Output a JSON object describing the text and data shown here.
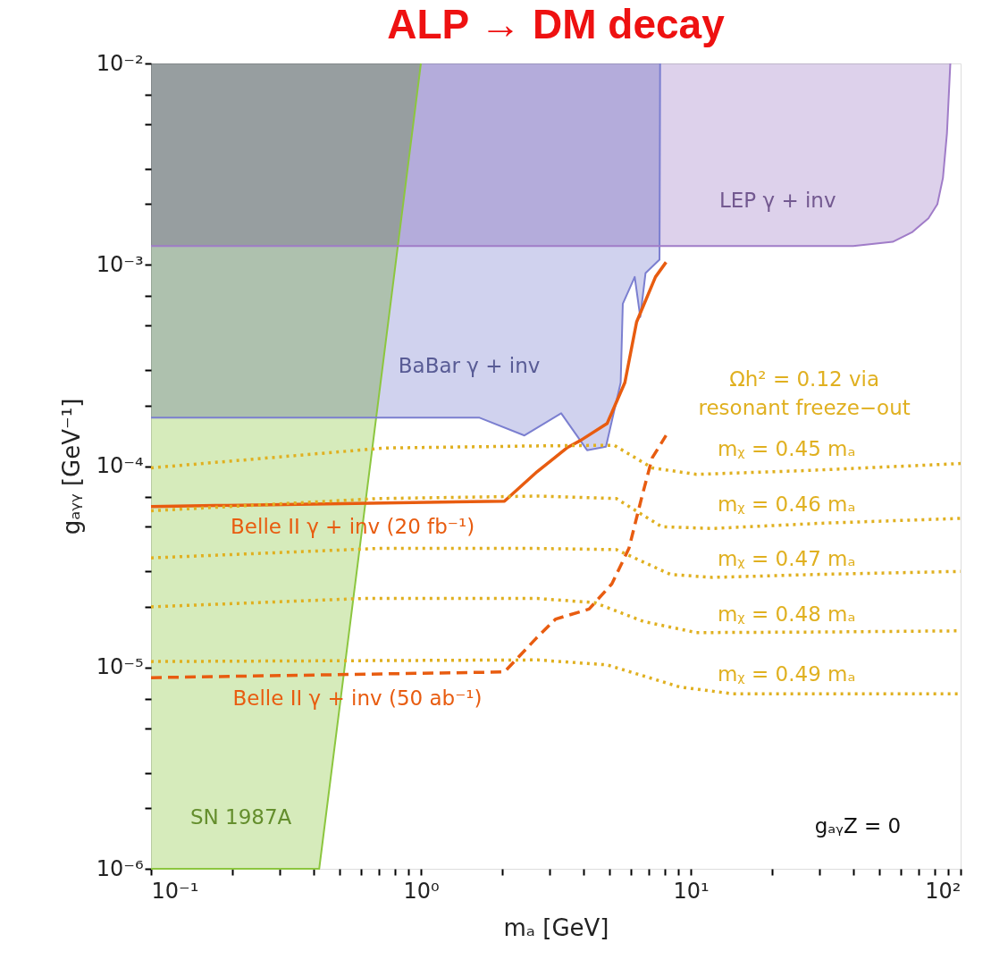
{
  "chart_data": {
    "type": "line",
    "title": "ALP → DM decay",
    "xlabel": "mₐ [GeV]",
    "ylabel": "gₐᵧᵧ [GeV⁻¹]",
    "log": "xy",
    "grid": false,
    "marker": "none",
    "xlim": [
      0.1,
      100
    ],
    "ylim": [
      1e-06,
      0.01
    ],
    "xticks": [
      {
        "value": 0.1,
        "label": "10⁻¹"
      },
      {
        "value": 0.2,
        "label": null
      },
      {
        "value": 0.3,
        "label": null
      },
      {
        "value": 0.4,
        "label": null
      },
      {
        "value": 0.5,
        "label": null
      },
      {
        "value": 0.6,
        "label": null
      },
      {
        "value": 0.7,
        "label": null
      },
      {
        "value": 0.8,
        "label": null
      },
      {
        "value": 0.9,
        "label": null
      },
      {
        "value": 1,
        "label": "10⁰"
      },
      {
        "value": 2,
        "label": null
      },
      {
        "value": 3,
        "label": null
      },
      {
        "value": 4,
        "label": null
      },
      {
        "value": 5,
        "label": null
      },
      {
        "value": 6,
        "label": null
      },
      {
        "value": 7,
        "label": null
      },
      {
        "value": 8,
        "label": null
      },
      {
        "value": 9,
        "label": null
      },
      {
        "value": 10,
        "label": "10¹"
      },
      {
        "value": 20,
        "label": null
      },
      {
        "value": 30,
        "label": null
      },
      {
        "value": 40,
        "label": null
      },
      {
        "value": 50,
        "label": null
      },
      {
        "value": 60,
        "label": null
      },
      {
        "value": 70,
        "label": null
      },
      {
        "value": 80,
        "label": null
      },
      {
        "value": 90,
        "label": null
      },
      {
        "value": 100,
        "label": "10²"
      }
    ],
    "yticks": [
      {
        "value": 1e-06,
        "label": "10⁻⁶"
      },
      {
        "value": 2e-06,
        "label": null
      },
      {
        "value": 3e-06,
        "label": null
      },
      {
        "value": 5e-06,
        "label": null
      },
      {
        "value": 7e-06,
        "label": null
      },
      {
        "value": 1e-05,
        "label": "10⁻⁵"
      },
      {
        "value": 2e-05,
        "label": null
      },
      {
        "value": 3e-05,
        "label": null
      },
      {
        "value": 5e-05,
        "label": null
      },
      {
        "value": 7e-05,
        "label": null
      },
      {
        "value": 0.0001,
        "label": "10⁻⁴"
      },
      {
        "value": 0.0002,
        "label": null
      },
      {
        "value": 0.0003,
        "label": null
      },
      {
        "value": 0.0005,
        "label": null
      },
      {
        "value": 0.0007,
        "label": null
      },
      {
        "value": 0.001,
        "label": "10⁻³"
      },
      {
        "value": 0.002,
        "label": null
      },
      {
        "value": 0.003,
        "label": null
      },
      {
        "value": 0.005,
        "label": null
      },
      {
        "value": 0.007,
        "label": null
      },
      {
        "value": 0.01,
        "label": "10⁻²"
      }
    ],
    "series": [
      {
        "color": "#8cc63f",
        "line_style": "solid",
        "x": [
          0.1,
          0.42,
          1.0
        ],
        "values": [
          1e-06,
          1e-06,
          0.01
        ],
        "lower": [
          1e-06,
          1e-06,
          0.01
        ],
        "upper": [
          0.01,
          0.01,
          0.01
        ]
      },
      {
        "color": "#7b7fd0",
        "line_style": "solid",
        "x": [
          0.1,
          1.3,
          1.65,
          2.42,
          3.31,
          4.13,
          4.85,
          5.5,
          5.6,
          6.2,
          6.5,
          6.8,
          7.66,
          7.7
        ],
        "values": [
          0.000174,
          0.000174,
          0.000174,
          0.000142,
          0.000183,
          0.00012,
          0.000125,
          0.00026,
          0.00064,
          0.00087,
          0.00055,
          0.00091,
          0.00106,
          0.01
        ],
        "lower": [
          0.000174,
          0.000174,
          0.000174,
          0.000142,
          0.000183,
          0.00012,
          0.000125,
          0.00026,
          0.00064,
          0.00087,
          0.00055,
          0.00091,
          0.00106,
          0.01
        ],
        "upper": [
          0.01,
          0.01,
          0.01,
          0.01,
          0.01,
          0.01,
          0.01,
          0.01,
          0.01,
          0.01,
          0.01,
          0.01,
          0.01,
          0.01
        ]
      },
      {
        "color": "#a07cc8",
        "line_style": "solid",
        "x": [
          0.1,
          40,
          56,
          66,
          76,
          82,
          86,
          89,
          91.6
        ],
        "values": [
          0.00124,
          0.00124,
          0.0013,
          0.00145,
          0.0017,
          0.002,
          0.0027,
          0.0045,
          0.01
        ],
        "lower": [
          0.00124,
          0.00124,
          0.0013,
          0.00145,
          0.0017,
          0.002,
          0.0027,
          0.0045,
          0.01
        ],
        "upper": [
          0.01,
          0.01,
          0.01,
          0.01,
          0.01,
          0.01,
          0.01,
          0.01,
          0.01
        ]
      },
      {
        "color": "#e85c10",
        "line_style": "solid",
        "x": [
          0.1,
          2.04,
          2.7,
          3.5,
          3.9,
          4.9,
          5.7,
          6.3,
          7.4,
          8.1
        ],
        "values": [
          6.3e-05,
          6.7e-05,
          9.4e-05,
          0.000124,
          0.000134,
          0.000163,
          0.00026,
          0.00052,
          0.00087,
          0.00103
        ]
      },
      {
        "color": "#e85c10",
        "line_style": "dashed",
        "x": [
          0.1,
          2.04,
          2.68,
          3.16,
          4.2,
          5.1,
          5.9,
          6.6,
          7.2,
          8.1
        ],
        "values": [
          8.9e-06,
          9.5e-06,
          1.4e-05,
          1.74e-05,
          1.95e-05,
          2.6e-05,
          3.9e-05,
          7.1e-05,
          0.00011,
          0.000142
        ]
      },
      {
        "color": "#e0b020",
        "line_style": "dotted",
        "x": [
          0.1,
          0.73,
          2.68,
          5.2,
          7.2,
          10.5,
          26.5,
          100
        ],
        "values": [
          9.8e-05,
          0.000123,
          0.000126,
          0.000127,
          9.8e-05,
          9.1e-05,
          9.5e-05,
          0.000103
        ]
      },
      {
        "color": "#e0b020",
        "line_style": "dotted",
        "x": [
          0.1,
          0.69,
          2.7,
          5.3,
          7.8,
          12,
          30,
          100
        ],
        "values": [
          6e-05,
          6.9e-05,
          7.1e-05,
          6.9e-05,
          5e-05,
          4.9e-05,
          5.2e-05,
          5.5e-05
        ]
      },
      {
        "color": "#e0b020",
        "line_style": "dotted",
        "x": [
          0.1,
          0.69,
          2.7,
          5.3,
          8.4,
          12,
          30,
          100
        ],
        "values": [
          3.5e-05,
          3.9e-05,
          3.9e-05,
          3.85e-05,
          2.9e-05,
          2.8e-05,
          2.9e-05,
          3e-05
        ]
      },
      {
        "color": "#e0b020",
        "line_style": "dotted",
        "x": [
          0.1,
          0.6,
          2.7,
          4.4,
          6.7,
          10.5,
          30,
          100
        ],
        "values": [
          2e-05,
          2.2e-05,
          2.2e-05,
          2.1e-05,
          1.69e-05,
          1.49e-05,
          1.5e-05,
          1.52e-05
        ]
      },
      {
        "color": "#e0b020",
        "line_style": "dotted",
        "x": [
          0.1,
          2.7,
          4.9,
          9.1,
          14.3,
          100
        ],
        "values": [
          1.07e-05,
          1.09e-05,
          1.03e-05,
          8e-06,
          7.4e-06,
          7.4e-06
        ]
      }
    ],
    "annotations": [
      "SN 1987A",
      "BaBar γ + inv",
      "LEP γ + inv",
      "Belle II γ + inv (20 fb⁻¹)",
      "Belle II γ + inv (50 ab⁻¹)",
      "Ωh² = 0.12 via",
      "resonant freeze−out",
      "mᵪ = 0.45 mₐ",
      "mᵪ = 0.46 mₐ",
      "mᵪ = 0.47 mₐ",
      "mᵪ = 0.48 mₐ",
      "mᵪ = 0.49 mₐ",
      "gₐᵧZ = 0"
    ]
  }
}
